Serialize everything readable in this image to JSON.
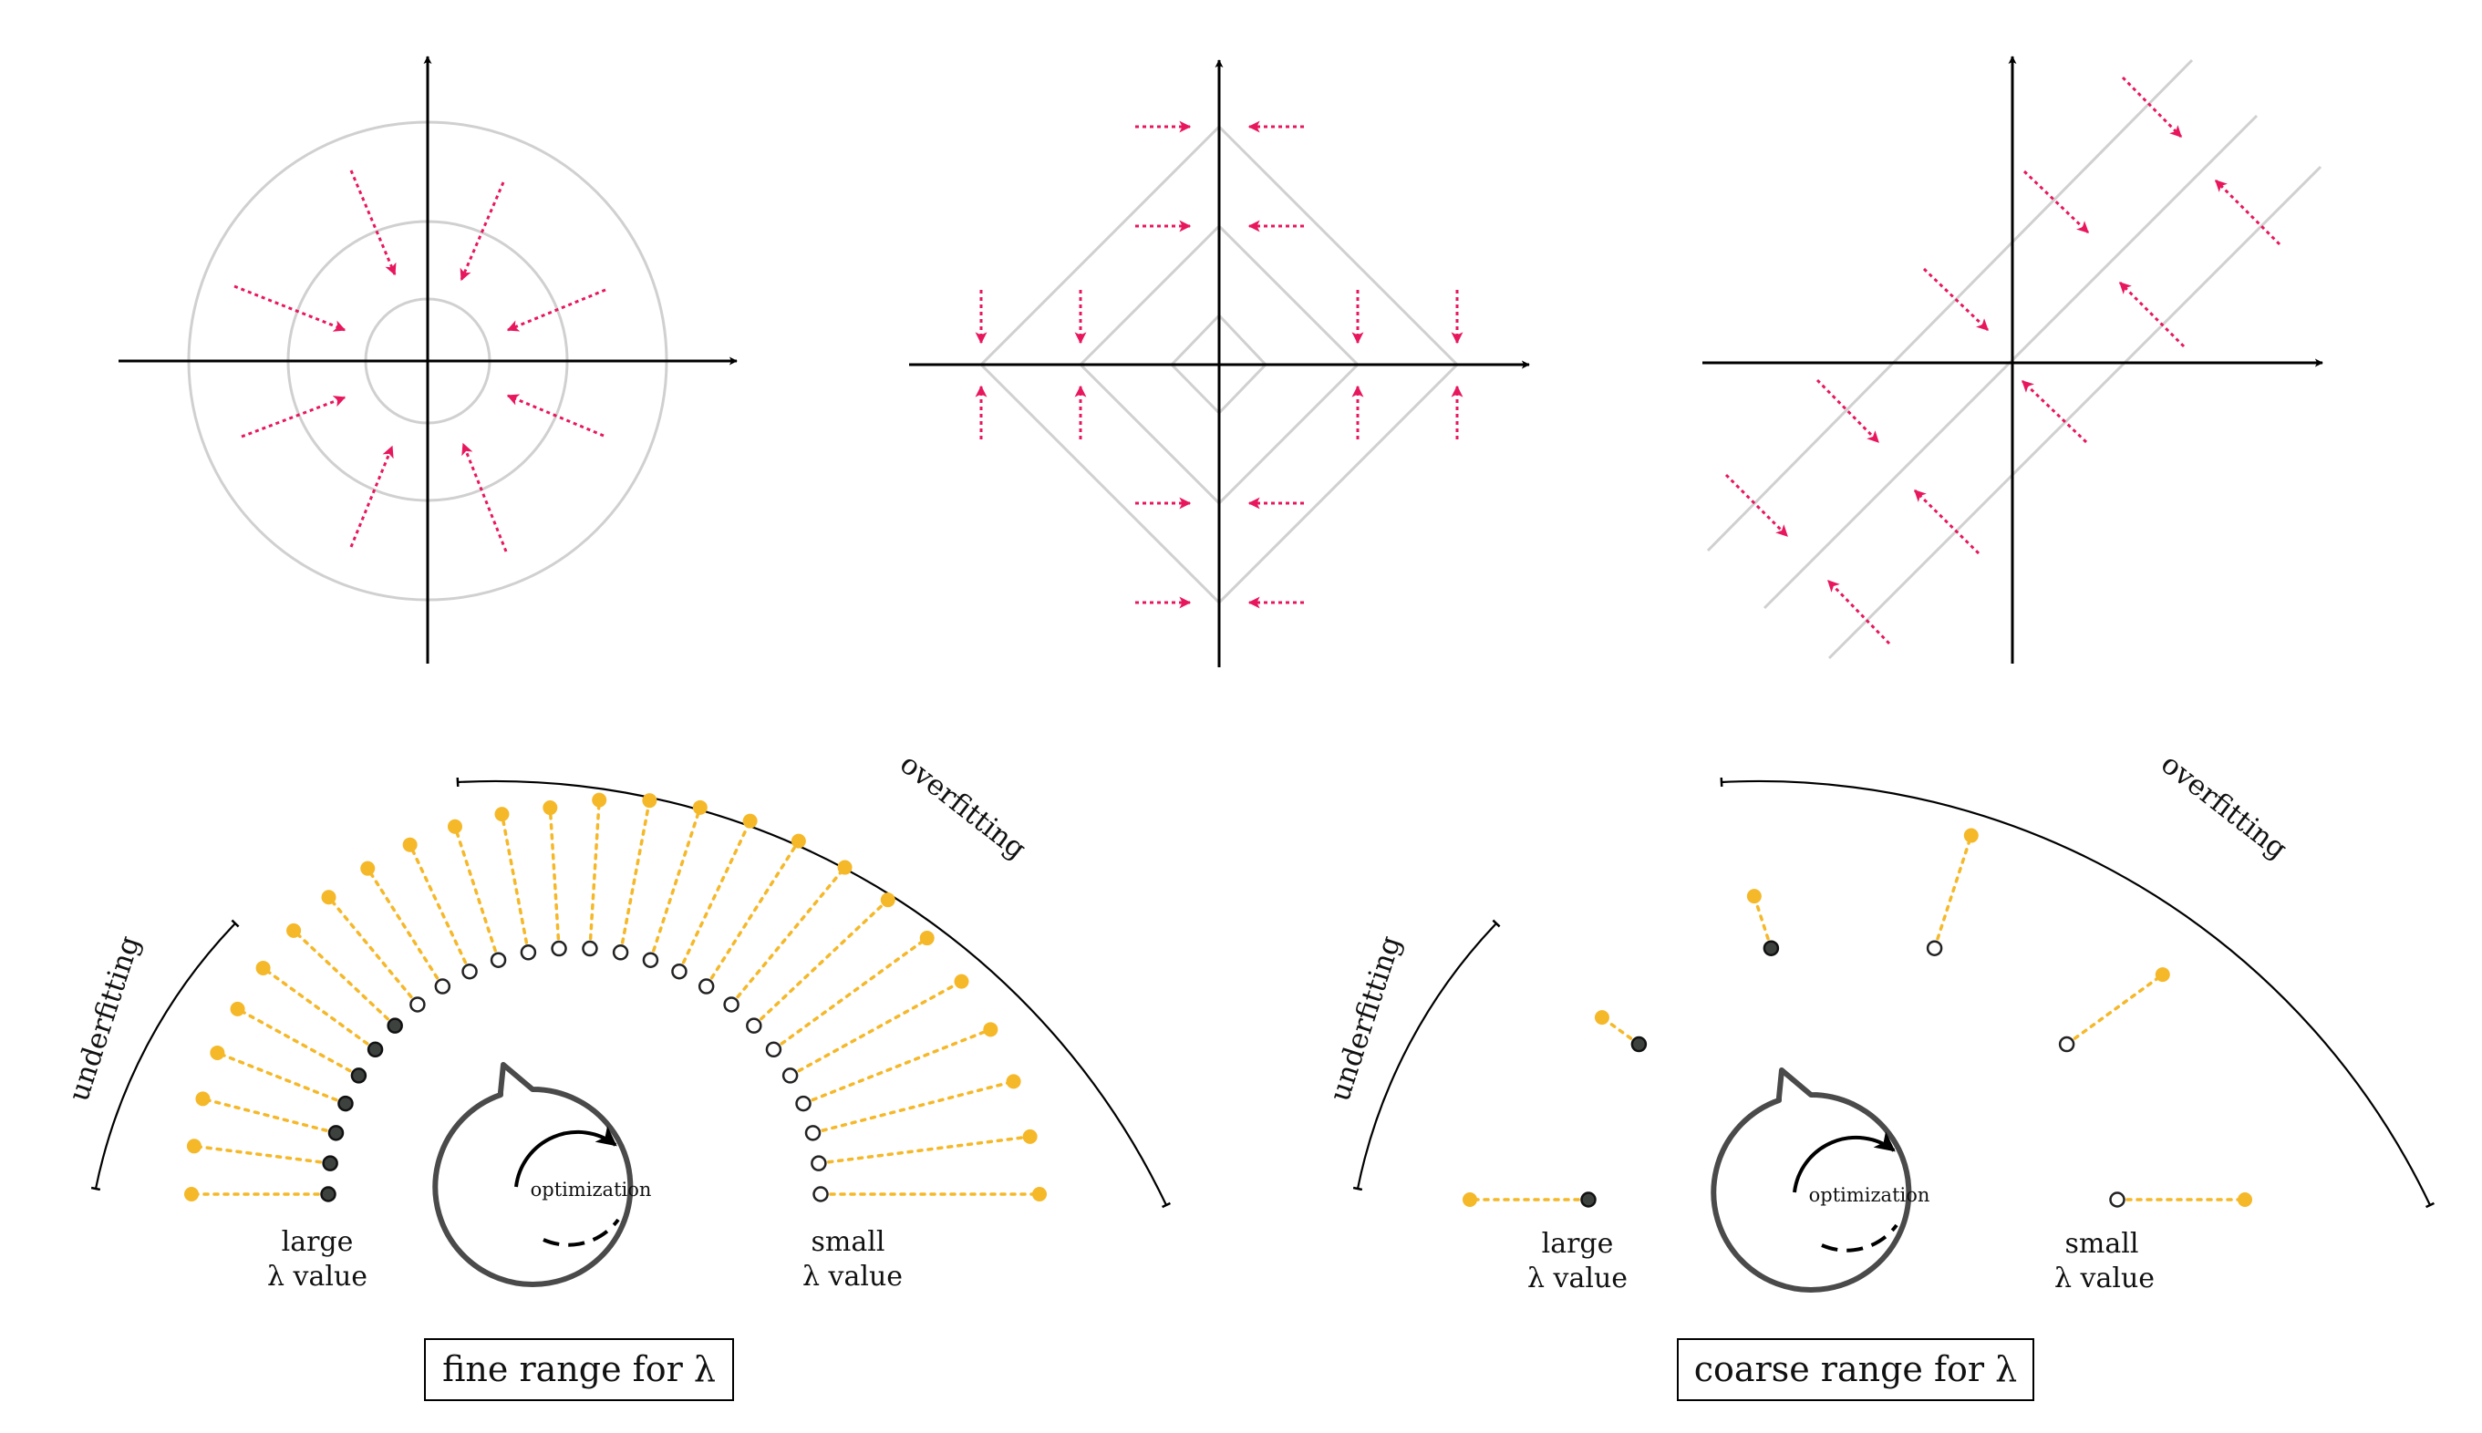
{
  "panels": {
    "circle_panel": {},
    "diamond_panel": {},
    "diagonal_panel": {}
  },
  "fine": {
    "arc_label_under": "underfitting",
    "arc_label_over": "overfitting",
    "left_label_line1": "large",
    "left_label_line2": "λ value",
    "right_label_line1": "small",
    "right_label_line2": "λ value",
    "center_label": "optimization",
    "box_label": "fine range for λ",
    "points_total": 26,
    "points_filled": 7
  },
  "coarse": {
    "arc_label_under": "underfitting",
    "arc_label_over": "overfitting",
    "left_label_line1": "large",
    "left_label_line2": "λ value",
    "right_label_line1": "small",
    "right_label_line2": "λ value",
    "center_label": "optimization",
    "box_label": "coarse range for λ",
    "points_total": 6,
    "points_filled": 3
  },
  "colors": {
    "axis": "#000000",
    "contour": "#d0d0d0",
    "arrow": "#e8175d",
    "yellow": "#f5b829",
    "dark_point": "#3d423f",
    "loop": "#4a4a4a"
  }
}
